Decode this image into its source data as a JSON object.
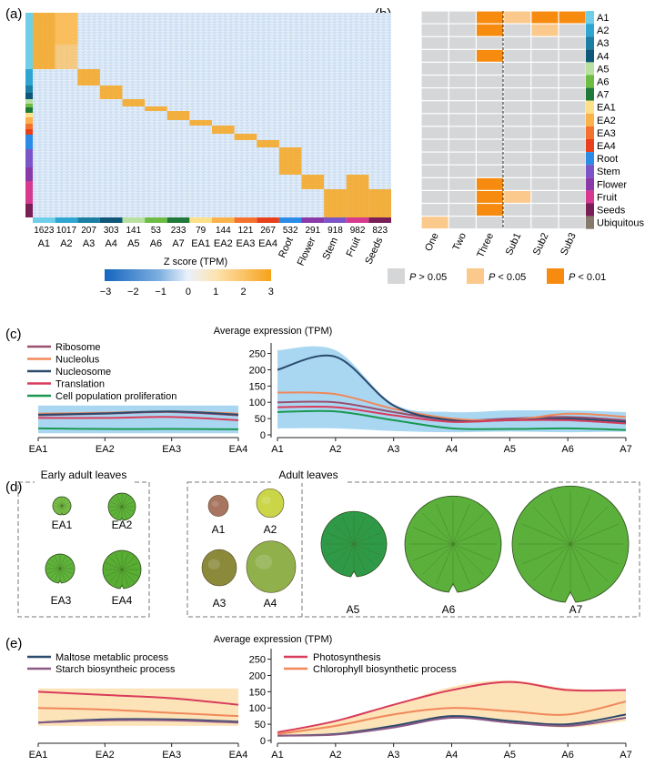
{
  "panel_labels": [
    "(a)",
    "(b)",
    "(c)",
    "(d)",
    "(e)"
  ],
  "colors": {
    "A1": "#6fcfe8",
    "A2": "#2fa6d2",
    "A3": "#1b7fa3",
    "A4": "#0f5778",
    "A5": "#b8e0a0",
    "A6": "#6dbd45",
    "A7": "#1f7a3a",
    "EA1": "#fde08a",
    "EA2": "#fbb24a",
    "EA3": "#f4722e",
    "EA4": "#e8401c",
    "Root": "#2a8ce6",
    "Stem": "#7a54c8",
    "Flower": "#8a3aa8",
    "Fruit": "#d6398f",
    "Seeds": "#7a1e58",
    "Ubiquitous": "#86796b",
    "p_ns": "#d4d6d8",
    "p_05": "#fcc98c",
    "p_01": "#f78b0f",
    "band_c": "#a9d7f2",
    "band_e": "#fde3b8"
  },
  "heatmap": {
    "columns": [
      "A1",
      "A2",
      "A3",
      "A4",
      "A5",
      "A6",
      "A7",
      "EA1",
      "EA2",
      "EA3",
      "EA4",
      "Root",
      "Flower",
      "Stem",
      "Fruit",
      "Seeds"
    ],
    "counts": [
      "1623",
      "1017",
      "207",
      "303",
      "141",
      "53",
      "233",
      "79",
      "144",
      "121",
      "267",
      "532",
      "291",
      "918",
      "982",
      "823"
    ],
    "legend_title": "Z score (TPM)",
    "legend_ticks": [
      "−3",
      "−2",
      "−1",
      "0",
      "1",
      "2",
      "3"
    ]
  },
  "enrichment": {
    "columns": [
      "One",
      "Two",
      "Three",
      "Sub1",
      "Sub2",
      "Sub3"
    ],
    "rows": [
      "A1",
      "A2",
      "A3",
      "A4",
      "A5",
      "A6",
      "A7",
      "EA1",
      "EA2",
      "EA3",
      "EA4",
      "Root",
      "Stem",
      "Flower",
      "Fruit",
      "Seeds",
      "Ubiquitous"
    ],
    "cells": [
      [
        "ns",
        "ns",
        "01",
        "05",
        "01",
        "01"
      ],
      [
        "ns",
        "ns",
        "01",
        "ns",
        "05",
        "ns"
      ],
      [
        "ns",
        "ns",
        "ns",
        "ns",
        "ns",
        "ns"
      ],
      [
        "ns",
        "ns",
        "01",
        "ns",
        "ns",
        "ns"
      ],
      [
        "ns",
        "ns",
        "ns",
        "ns",
        "ns",
        "ns"
      ],
      [
        "ns",
        "ns",
        "ns",
        "ns",
        "ns",
        "ns"
      ],
      [
        "ns",
        "ns",
        "ns",
        "ns",
        "ns",
        "ns"
      ],
      [
        "ns",
        "ns",
        "ns",
        "ns",
        "ns",
        "ns"
      ],
      [
        "ns",
        "ns",
        "ns",
        "ns",
        "ns",
        "ns"
      ],
      [
        "ns",
        "ns",
        "ns",
        "ns",
        "ns",
        "ns"
      ],
      [
        "ns",
        "ns",
        "ns",
        "ns",
        "ns",
        "ns"
      ],
      [
        "ns",
        "ns",
        "ns",
        "ns",
        "ns",
        "ns"
      ],
      [
        "ns",
        "ns",
        "ns",
        "ns",
        "ns",
        "ns"
      ],
      [
        "ns",
        "ns",
        "01",
        "ns",
        "ns",
        "ns"
      ],
      [
        "ns",
        "ns",
        "01",
        "05",
        "ns",
        "ns"
      ],
      [
        "ns",
        "ns",
        "01",
        "ns",
        "ns",
        "ns"
      ],
      [
        "05",
        "ns",
        "ns",
        "ns",
        "ns",
        "ns"
      ]
    ],
    "legend": [
      {
        "key": "ns",
        "label_p": "P",
        "label_rest": " > 0.05"
      },
      {
        "key": "05",
        "label_p": "P",
        "label_rest": " < 0.05"
      },
      {
        "key": "01",
        "label_p": "P",
        "label_rest": " < 0.01"
      }
    ]
  },
  "panel_c": {
    "title": "Average expression (TPM)",
    "y_ticks": [
      "250",
      "200",
      "150",
      "100",
      "50",
      "0"
    ],
    "left_x": [
      "EA1",
      "EA2",
      "EA3",
      "EA4"
    ],
    "right_x": [
      "A1",
      "A2",
      "A3",
      "A4",
      "A5",
      "A6",
      "A7"
    ],
    "series": [
      {
        "name": "Ribosome",
        "color": "#9a4f6e"
      },
      {
        "name": "Nucleolus",
        "color": "#f0885a"
      },
      {
        "name": "Nucleosome",
        "color": "#2b4a6d"
      },
      {
        "name": "Translation",
        "color": "#d83c5b"
      },
      {
        "name": "Cell population proliferation",
        "color": "#1a9850"
      }
    ]
  },
  "chart_data": [
    {
      "type": "line",
      "panel": "(c) early adult leaves",
      "title": "Average expression (TPM)",
      "x": [
        "EA1",
        "EA2",
        "EA3",
        "EA4"
      ],
      "ylim": [
        0,
        260
      ],
      "band": {
        "lower": [
          5,
          5,
          5,
          5
        ],
        "upper": [
          90,
          90,
          90,
          90
        ]
      },
      "series": [
        {
          "name": "Ribosome",
          "values": [
            60,
            65,
            70,
            60
          ]
        },
        {
          "name": "Nucleolus",
          "values": [
            65,
            68,
            72,
            65
          ]
        },
        {
          "name": "Nucleosome",
          "values": [
            62,
            66,
            72,
            62
          ]
        },
        {
          "name": "Translation",
          "values": [
            52,
            52,
            55,
            45
          ]
        },
        {
          "name": "Cell population proliferation",
          "values": [
            20,
            18,
            18,
            17
          ]
        }
      ]
    },
    {
      "type": "line",
      "panel": "(c) adult leaves",
      "title": "Average expression (TPM)",
      "x": [
        "A1",
        "A2",
        "A3",
        "A4",
        "A5",
        "A6",
        "A7"
      ],
      "ylim": [
        0,
        260
      ],
      "band": {
        "lower": [
          20,
          20,
          12,
          8,
          10,
          8,
          10
        ],
        "upper": [
          260,
          260,
          95,
          70,
          75,
          75,
          70
        ]
      },
      "series": [
        {
          "name": "Ribosome",
          "values": [
            100,
            100,
            70,
            45,
            50,
            55,
            45
          ]
        },
        {
          "name": "Nucleolus",
          "values": [
            130,
            125,
            80,
            50,
            45,
            65,
            55
          ]
        },
        {
          "name": "Nucleosome",
          "values": [
            200,
            240,
            90,
            45,
            45,
            50,
            40
          ]
        },
        {
          "name": "Translation",
          "values": [
            85,
            85,
            60,
            40,
            45,
            45,
            35
          ]
        },
        {
          "name": "Cell population proliferation",
          "values": [
            70,
            72,
            45,
            20,
            18,
            20,
            15
          ]
        }
      ]
    },
    {
      "type": "line",
      "panel": "(e) early adult leaves",
      "title": "Average expression (TPM)",
      "x": [
        "EA1",
        "EA2",
        "EA3",
        "EA4"
      ],
      "ylim": [
        0,
        260
      ],
      "band": {
        "lower": [
          45,
          45,
          45,
          45
        ],
        "upper": [
          160,
          160,
          160,
          160
        ]
      },
      "series": [
        {
          "name": "Maltose metablic process",
          "values": [
            55,
            65,
            65,
            58
          ]
        },
        {
          "name": "Starch biosyntheic process",
          "values": [
            55,
            62,
            62,
            55
          ]
        },
        {
          "name": "Photosynthesis",
          "values": [
            150,
            140,
            130,
            110
          ]
        },
        {
          "name": "Chlorophyll biosynthetic process",
          "values": [
            100,
            95,
            85,
            75
          ]
        }
      ]
    },
    {
      "type": "line",
      "panel": "(e) adult leaves",
      "title": "Average expression (TPM)",
      "x": [
        "A1",
        "A2",
        "A3",
        "A4",
        "A5",
        "A6",
        "A7"
      ],
      "ylim": [
        0,
        260
      ],
      "band": {
        "lower": [
          15,
          20,
          40,
          70,
          55,
          40,
          60
        ],
        "upper": [
          25,
          60,
          110,
          165,
          185,
          160,
          155
        ]
      },
      "series": [
        {
          "name": "Maltose metablic process",
          "values": [
            15,
            20,
            45,
            75,
            60,
            50,
            80
          ]
        },
        {
          "name": "Starch biosyntheic process",
          "values": [
            15,
            18,
            40,
            70,
            55,
            45,
            70
          ]
        },
        {
          "name": "Photosynthesis",
          "values": [
            25,
            60,
            110,
            155,
            180,
            155,
            155
          ]
        },
        {
          "name": "Chlorophyll biosynthetic process",
          "values": [
            20,
            45,
            80,
            100,
            90,
            80,
            120
          ]
        }
      ]
    }
  ],
  "panel_d": {
    "early_title": "Early adult leaves",
    "adult_title": "Adult leaves",
    "early_labels": [
      "EA1",
      "EA2",
      "EA3",
      "EA4"
    ],
    "adult_small_labels": [
      "A1",
      "A2",
      "A3",
      "A4"
    ],
    "adult_large_labels": [
      "A5",
      "A6",
      "A7"
    ]
  },
  "panel_e": {
    "title": "Average expression (TPM)",
    "y_ticks": [
      "250",
      "200",
      "150",
      "100",
      "50",
      "0"
    ],
    "left_x": [
      "EA1",
      "EA2",
      "EA3",
      "EA4"
    ],
    "right_x": [
      "A1",
      "A2",
      "A3",
      "A4",
      "A5",
      "A6",
      "A7"
    ],
    "legend_left": [
      {
        "name": "Maltose metablic process",
        "color": "#2b4a6d"
      },
      {
        "name": "Starch biosyntheic process",
        "color": "#8b5a86"
      }
    ],
    "legend_right": [
      {
        "name": "Photosynthesis",
        "color": "#d83c5b"
      },
      {
        "name": "Chlorophyll biosynthetic process",
        "color": "#f0885a"
      }
    ]
  }
}
